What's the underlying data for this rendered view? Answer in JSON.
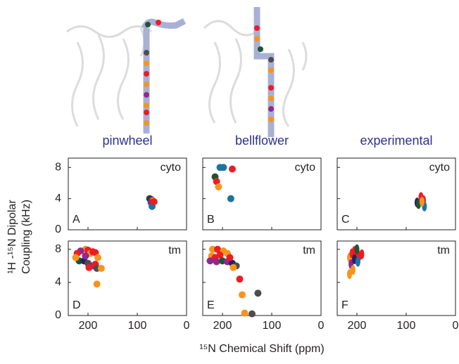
{
  "column_titles": [
    "pinwheel",
    "bellflower",
    "experimental"
  ],
  "y_label": [
    "¹H -¹⁵N Dipolar",
    "Coupling (kHz)"
  ],
  "x_label": "¹⁵N Chemical Shift (ppm)",
  "chart_data": [
    {
      "type": "scatter",
      "label": "A",
      "annotation": "cyto",
      "xlim": [
        240,
        0
      ],
      "ylim": [
        0,
        9.2
      ],
      "xticks": [
        200,
        100,
        0
      ],
      "yticks": [
        0,
        4,
        8
      ],
      "x": [
        75,
        72,
        70,
        68,
        72,
        70,
        66
      ],
      "values": [
        4.0,
        3.9,
        3.8,
        3.7,
        3.5,
        3.0,
        3.6
      ],
      "colors": [
        "#1e5631",
        "#262262",
        "#ed1c24",
        "#f7941d",
        "#92278f",
        "#1b75a0",
        "#ed1c24"
      ]
    },
    {
      "type": "scatter",
      "label": "B",
      "annotation": "cyto",
      "xlim": [
        240,
        0
      ],
      "ylim": [
        0,
        9.2
      ],
      "xticks": [
        200,
        100,
        0
      ],
      "yticks": [
        0,
        4,
        8
      ],
      "x": [
        205,
        198,
        180,
        215,
        212,
        208,
        183
      ],
      "values": [
        8.0,
        8.0,
        7.8,
        6.8,
        6.2,
        5.5,
        4.0
      ],
      "colors": [
        "#1b75a0",
        "#1b75a0",
        "#ed1c24",
        "#1e5631",
        "#ed1c24",
        "#f7941d",
        "#1b75a0"
      ]
    },
    {
      "type": "ellipse-scatter",
      "label": "C",
      "annotation": "cyto",
      "xlim": [
        240,
        0
      ],
      "ylim": [
        0,
        9.2
      ],
      "xticks": [
        200,
        100,
        0
      ],
      "yticks": [
        0,
        4,
        8
      ],
      "x": [
        78,
        75,
        70,
        65,
        63,
        68
      ],
      "values": [
        3.5,
        3.3,
        4.2,
        3.8,
        3.0,
        3.6
      ],
      "colors": [
        "#262262",
        "#1e5631",
        "#ed1c24",
        "#ed1c24",
        "#1b75a0",
        "#f7941d"
      ]
    },
    {
      "type": "scatter",
      "label": "D",
      "annotation": "tm",
      "xlim": [
        240,
        0
      ],
      "ylim": [
        0,
        9
      ],
      "xticks": [
        200,
        100,
        0
      ],
      "yticks": [
        0,
        4,
        8
      ],
      "x": [
        205,
        200,
        215,
        222,
        195,
        190,
        185,
        180,
        218,
        208,
        225,
        200,
        192,
        185,
        198,
        182,
        173,
        182,
        205
      ],
      "values": [
        8.0,
        7.9,
        7.8,
        7.5,
        7.5,
        7.7,
        7.6,
        7.0,
        6.6,
        6.6,
        7.0,
        6.3,
        6.0,
        6.2,
        5.8,
        5.7,
        5.7,
        3.8,
        7.2
      ],
      "colors": [
        "#f7941d",
        "#ed1c24",
        "#92278f",
        "#ed1c24",
        "#f7941d",
        "#ed1c24",
        "#ed1c24",
        "#f7941d",
        "#1e5631",
        "#262262",
        "#f7941d",
        "#4d4d4d",
        "#92278f",
        "#ed1c24",
        "#ed1c24",
        "#4d4d4d",
        "#f7941d",
        "#f7941d",
        "#92278f"
      ]
    },
    {
      "type": "scatter",
      "label": "E",
      "annotation": "tm",
      "xlim": [
        240,
        0
      ],
      "ylim": [
        0,
        9
      ],
      "xticks": [
        200,
        100,
        0
      ],
      "yticks": [
        0,
        4,
        8
      ],
      "x": [
        220,
        210,
        198,
        222,
        215,
        205,
        190,
        225,
        212,
        200,
        190,
        180,
        172,
        178,
        165,
        128,
        160,
        155,
        140,
        185
      ],
      "values": [
        8.0,
        8.0,
        7.8,
        7.2,
        7.0,
        7.3,
        7.5,
        6.6,
        6.5,
        6.6,
        6.5,
        6.3,
        6.0,
        5.8,
        4.4,
        2.7,
        2.5,
        0.3,
        0.2,
        7.0
      ],
      "colors": [
        "#f7941d",
        "#ed1c24",
        "#f7941d",
        "#f7941d",
        "#ed1c24",
        "#ed1c24",
        "#f7941d",
        "#92278f",
        "#92278f",
        "#1e5631",
        "#92278f",
        "#262262",
        "#4d4d4d",
        "#f7941d",
        "#ed1c24",
        "#4d4d4d",
        "#f7941d",
        "#f7941d",
        "#4d4d4d",
        "#ed1c24"
      ]
    },
    {
      "type": "ellipse-scatter",
      "label": "F",
      "annotation": "tm",
      "xlim": [
        240,
        0
      ],
      "ylim": [
        0,
        9
      ],
      "xticks": [
        200,
        100,
        0
      ],
      "yticks": [
        0,
        4,
        8
      ],
      "x": [
        215,
        210,
        205,
        200,
        195,
        212,
        205,
        198,
        190,
        208,
        215,
        200
      ],
      "values": [
        7.0,
        7.5,
        7.8,
        7.6,
        7.2,
        6.2,
        6.8,
        6.5,
        7.4,
        5.5,
        5.0,
        8.0
      ],
      "colors": [
        "#f7941d",
        "#ed1c24",
        "#ed1c24",
        "#ed1c24",
        "#ed1c24",
        "#92278f",
        "#262262",
        "#1b75a0",
        "#ed1c24",
        "#f7941d",
        "#f7941d",
        "#1e5631"
      ]
    }
  ]
}
